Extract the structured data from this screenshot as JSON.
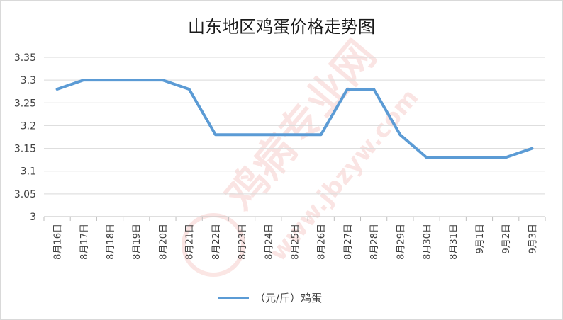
{
  "chart_data": {
    "type": "line",
    "title": "山东地区鸡蛋价格走势图",
    "categories": [
      "8月16日",
      "8月17日",
      "8月18日",
      "8月19日",
      "8月20日",
      "8月21日",
      "8月22日",
      "8月23日",
      "8月24日",
      "8月25日",
      "8月26日",
      "8月27日",
      "8月28日",
      "8月29日",
      "8月30日",
      "8月31日",
      "9月1日",
      "9月2日",
      "9月3日"
    ],
    "series": [
      {
        "name": "（元/斤）鸡蛋",
        "values": [
          3.28,
          3.3,
          3.3,
          3.3,
          3.3,
          3.28,
          3.18,
          3.18,
          3.18,
          3.18,
          3.18,
          3.28,
          3.28,
          3.18,
          3.13,
          3.13,
          3.13,
          3.13,
          3.15
        ]
      }
    ],
    "ylim": [
      3,
      3.35
    ],
    "yticks": [
      "3",
      "3.05",
      "3.1",
      "3.15",
      "3.2",
      "3.25",
      "3.3",
      "3.35"
    ],
    "grid": true,
    "legend_position": "bottom",
    "colors": {
      "line": "#5b9bd5",
      "grid": "#d9d9d9",
      "axis": "#bfbfbf"
    }
  },
  "watermark": {
    "text": "鸡病专业网",
    "url": "www.jbzyw.com",
    "color": "#e03a2f"
  }
}
